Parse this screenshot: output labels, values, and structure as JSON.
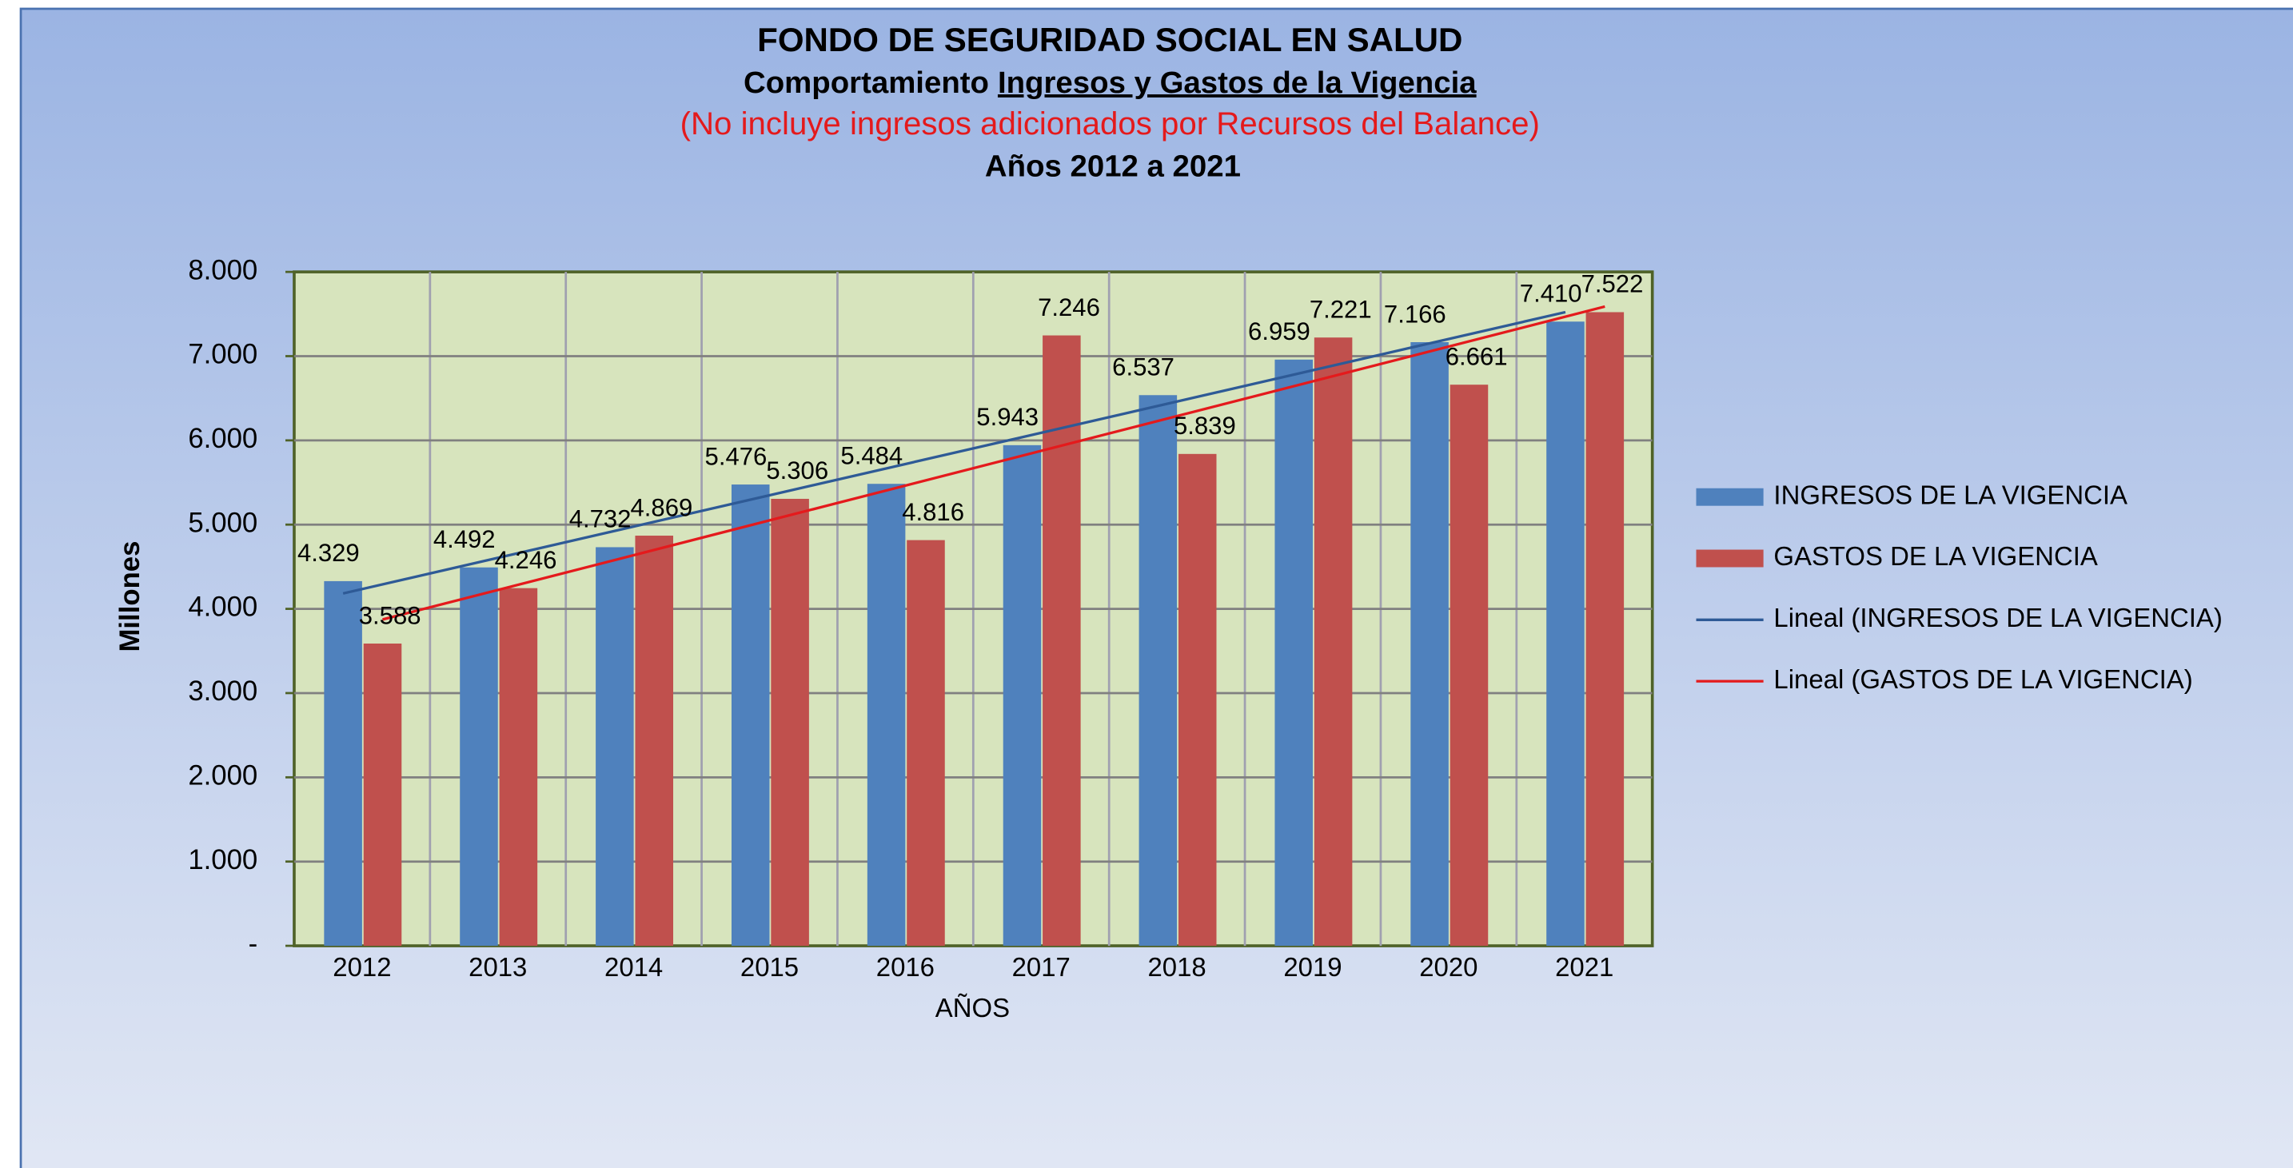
{
  "chart_data": {
    "type": "bar",
    "title": "FONDO DE SEGURIDAD SOCIAL EN SALUD",
    "subtitle": {
      "text": "Comportamiento",
      "underlined": "Ingresos y Gastos de la Vigencia"
    },
    "note": "(No incluye ingresos adicionados por Recursos del Balance)",
    "subtitle2": "Años 2012 a 2021",
    "x_label": "AÑOS",
    "y_label": "Millones",
    "categories": [
      "2012",
      "2013",
      "2014",
      "2015",
      "2016",
      "2017",
      "2018",
      "2019",
      "2020",
      "2021"
    ],
    "series": [
      {
        "name": "INGRESOS DE LA VIGENCIA",
        "color": "#4f81bd",
        "values": [
          4329,
          4492,
          4732,
          5476,
          5484,
          5943,
          6537,
          6959,
          7166,
          7410
        ],
        "value_labels": [
          "4.329",
          "4.492",
          "4.732",
          "5.476",
          "5.484",
          "5.943",
          "6.537",
          "6.959",
          "7.166",
          "7.410"
        ],
        "trendline": {
          "name": "Lineal (INGRESOS DE LA VIGENCIA)",
          "color": "#2e5a96"
        }
      },
      {
        "name": "GASTOS DE LA VIGENCIA",
        "color": "#c0504d",
        "values": [
          3588,
          4246,
          4869,
          5306,
          4816,
          7246,
          5839,
          7221,
          6661,
          7522
        ],
        "value_labels": [
          "3.588",
          "4.246",
          "4.869",
          "5.306",
          "4.816",
          "7.246",
          "5.839",
          "7.221",
          "6.661",
          "7.522"
        ],
        "trendline": {
          "name": "Lineal (GASTOS DE LA VIGENCIA)",
          "color": "#e41a1c"
        }
      }
    ],
    "ylim": [
      0,
      8000
    ],
    "yticks": [
      {
        "value": 0,
        "label": "-"
      },
      {
        "value": 1000,
        "label": "1.000"
      },
      {
        "value": 2000,
        "label": "2.000"
      },
      {
        "value": 3000,
        "label": "3.000"
      },
      {
        "value": 4000,
        "label": "4.000"
      },
      {
        "value": 5000,
        "label": "5.000"
      },
      {
        "value": 6000,
        "label": "6.000"
      },
      {
        "value": 7000,
        "label": "7.000"
      },
      {
        "value": 8000,
        "label": "8.000"
      }
    ],
    "grid": true,
    "legend": "right"
  }
}
